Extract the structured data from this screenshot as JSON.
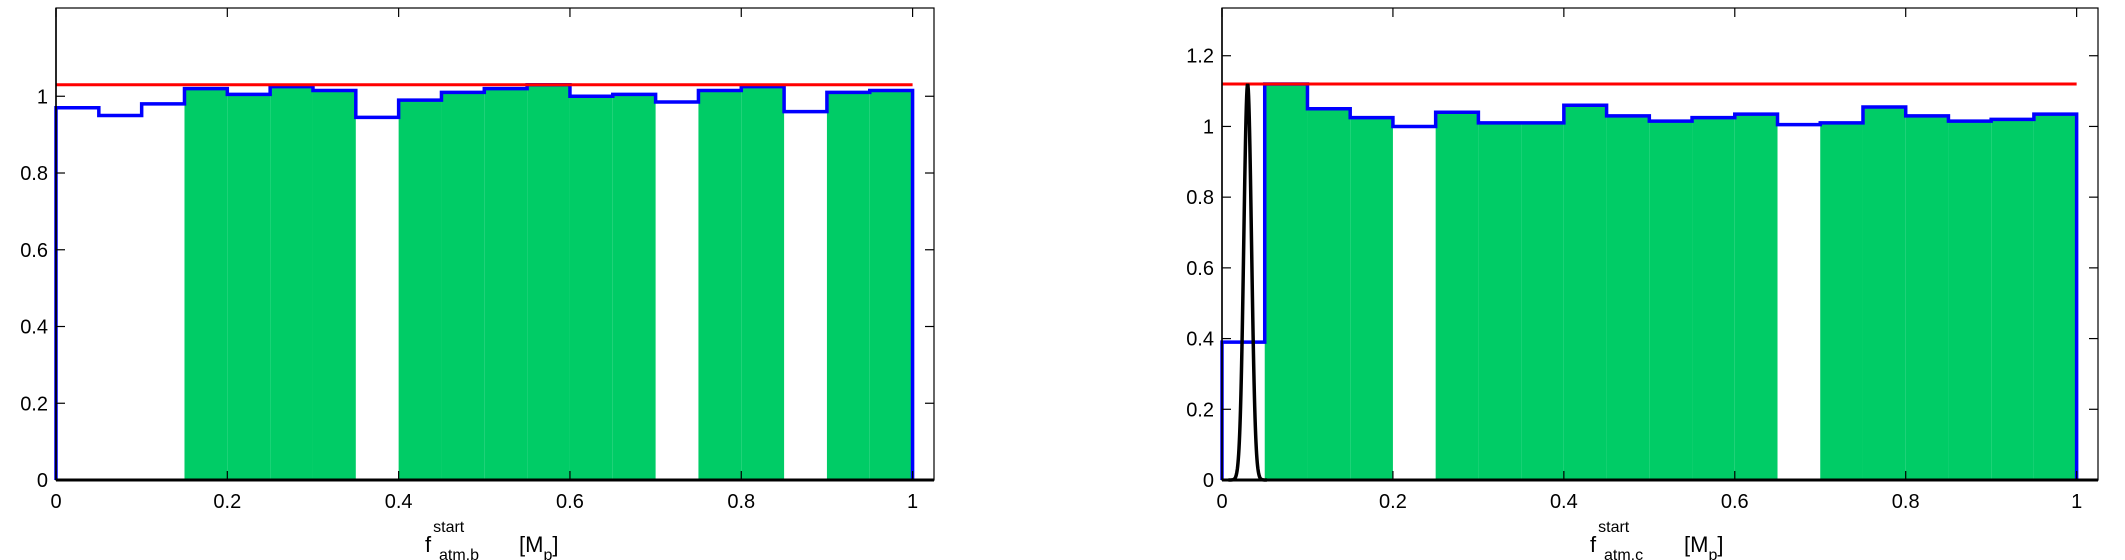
{
  "chart_data": [
    {
      "type": "bar",
      "xlabel": {
        "base": "f",
        "sup": "start",
        "sub": "atm,b",
        "unit_open": "[M",
        "unit_sub": "p",
        "unit_close": "]"
      },
      "xlim": [
        0,
        1.025
      ],
      "ylim": [
        0,
        1.23
      ],
      "xticks": [
        0,
        0.2,
        0.4,
        0.6,
        0.8,
        1
      ],
      "xtick_labels": [
        "0",
        "0.2",
        "0.4",
        "0.6",
        "0.8",
        "1"
      ],
      "yticks": [
        0,
        0.2,
        0.4,
        0.6,
        0.8,
        1
      ],
      "ytick_labels": [
        "0",
        "0.2",
        "0.4",
        "0.6",
        "0.8",
        "1"
      ],
      "bin_width": 0.05,
      "bins": [
        {
          "x": 0.0,
          "y": 0.97,
          "filled": false
        },
        {
          "x": 0.05,
          "y": 0.95,
          "filled": false
        },
        {
          "x": 0.1,
          "y": 0.98,
          "filled": false
        },
        {
          "x": 0.15,
          "y": 1.02,
          "filled": true
        },
        {
          "x": 0.2,
          "y": 1.005,
          "filled": true
        },
        {
          "x": 0.25,
          "y": 1.025,
          "filled": true
        },
        {
          "x": 0.3,
          "y": 1.015,
          "filled": true
        },
        {
          "x": 0.35,
          "y": 0.945,
          "filled": false
        },
        {
          "x": 0.4,
          "y": 0.99,
          "filled": true
        },
        {
          "x": 0.45,
          "y": 1.01,
          "filled": true
        },
        {
          "x": 0.5,
          "y": 1.02,
          "filled": true
        },
        {
          "x": 0.55,
          "y": 1.03,
          "filled": true
        },
        {
          "x": 0.6,
          "y": 1.0,
          "filled": true
        },
        {
          "x": 0.65,
          "y": 1.005,
          "filled": true
        },
        {
          "x": 0.7,
          "y": 0.985,
          "filled": false
        },
        {
          "x": 0.75,
          "y": 1.015,
          "filled": true
        },
        {
          "x": 0.8,
          "y": 1.025,
          "filled": true
        },
        {
          "x": 0.85,
          "y": 0.96,
          "filled": false
        },
        {
          "x": 0.9,
          "y": 1.01,
          "filled": true
        },
        {
          "x": 0.95,
          "y": 1.015,
          "filled": true
        }
      ],
      "reference_line": {
        "y": 1.03,
        "x_range": [
          0,
          1
        ]
      },
      "colors": {
        "fill": "#00cc66",
        "outline": "#0000ff",
        "reference": "#ff0000",
        "peak": "#000000"
      }
    },
    {
      "type": "bar",
      "xlabel": {
        "base": "f",
        "sup": "start",
        "sub": "atm,c",
        "unit_open": "[M",
        "unit_sub": "p",
        "unit_close": "]"
      },
      "xlim": [
        0,
        1.025
      ],
      "ylim": [
        0,
        1.335
      ],
      "xticks": [
        0,
        0.2,
        0.4,
        0.6,
        0.8,
        1
      ],
      "xtick_labels": [
        "0",
        "0.2",
        "0.4",
        "0.6",
        "0.8",
        "1"
      ],
      "yticks": [
        0,
        0.2,
        0.4,
        0.6,
        0.8,
        1,
        1.2
      ],
      "ytick_labels": [
        "0",
        "0.2",
        "0.4",
        "0.6",
        "0.8",
        "1",
        "1.2"
      ],
      "bin_width": 0.05,
      "bins": [
        {
          "x": 0.0,
          "y": 0.39,
          "filled": false
        },
        {
          "x": 0.05,
          "y": 1.12,
          "filled": true
        },
        {
          "x": 0.1,
          "y": 1.05,
          "filled": true
        },
        {
          "x": 0.15,
          "y": 1.025,
          "filled": true
        },
        {
          "x": 0.2,
          "y": 1.0,
          "filled": false
        },
        {
          "x": 0.25,
          "y": 1.04,
          "filled": true
        },
        {
          "x": 0.3,
          "y": 1.01,
          "filled": true
        },
        {
          "x": 0.35,
          "y": 1.01,
          "filled": true
        },
        {
          "x": 0.4,
          "y": 1.06,
          "filled": true
        },
        {
          "x": 0.45,
          "y": 1.03,
          "filled": true
        },
        {
          "x": 0.5,
          "y": 1.015,
          "filled": true
        },
        {
          "x": 0.55,
          "y": 1.025,
          "filled": true
        },
        {
          "x": 0.6,
          "y": 1.035,
          "filled": true
        },
        {
          "x": 0.65,
          "y": 1.005,
          "filled": false
        },
        {
          "x": 0.7,
          "y": 1.01,
          "filled": true
        },
        {
          "x": 0.75,
          "y": 1.055,
          "filled": true
        },
        {
          "x": 0.8,
          "y": 1.03,
          "filled": true
        },
        {
          "x": 0.85,
          "y": 1.015,
          "filled": true
        },
        {
          "x": 0.9,
          "y": 1.02,
          "filled": true
        },
        {
          "x": 0.95,
          "y": 1.035,
          "filled": true
        }
      ],
      "reference_line": {
        "y": 1.12,
        "x_range": [
          0,
          1
        ]
      },
      "peak": {
        "center": 0.03,
        "height": 1.12,
        "sigma": 0.0045
      },
      "colors": {
        "fill": "#00cc66",
        "outline": "#0000ff",
        "reference": "#ff0000",
        "peak": "#000000"
      }
    }
  ]
}
